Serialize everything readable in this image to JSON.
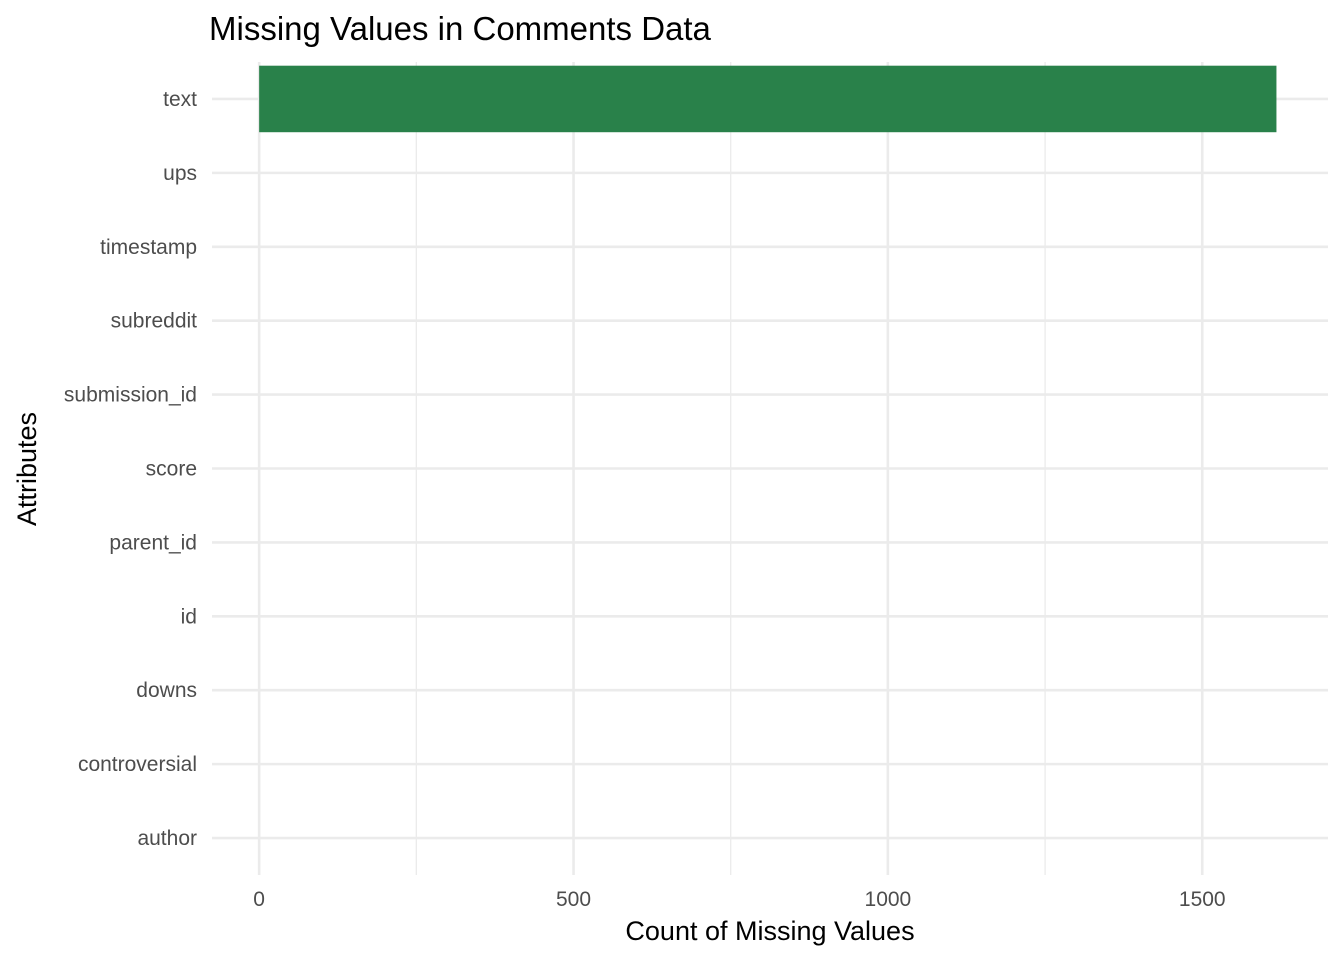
{
  "chart_data": {
    "type": "bar",
    "orientation": "horizontal",
    "title": "Missing Values in Comments Data",
    "xlabel": "Count of Missing Values",
    "ylabel": "Attributes",
    "categories": [
      "author",
      "controversial",
      "downs",
      "id",
      "parent_id",
      "score",
      "submission_id",
      "subreddit",
      "timestamp",
      "ups",
      "text"
    ],
    "values": [
      0,
      0,
      0,
      0,
      0,
      0,
      0,
      0,
      0,
      0,
      1618
    ],
    "xlim": [
      -75,
      1700
    ],
    "xticks": [
      0,
      500,
      1000,
      1500
    ],
    "xtick_labels": [
      "0",
      "500",
      "1000",
      "1500"
    ],
    "grid": true,
    "bar_color": "#29814a"
  }
}
